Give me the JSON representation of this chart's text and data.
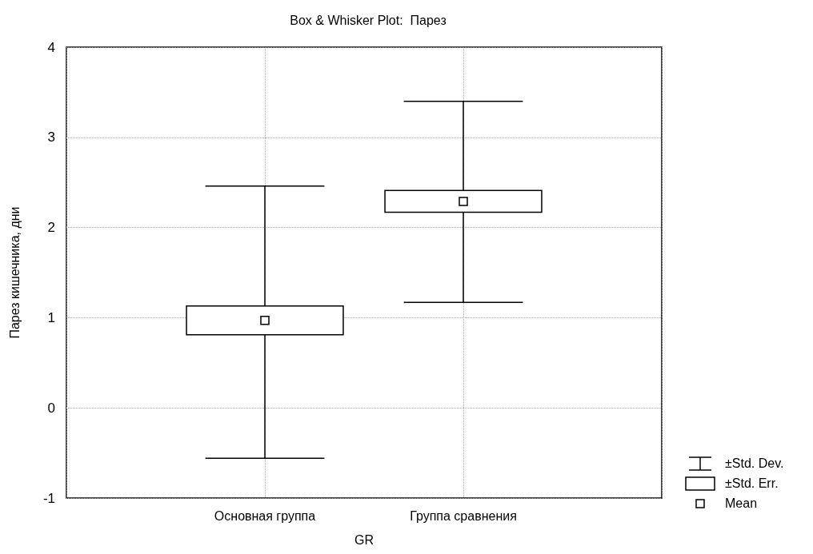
{
  "chart_data": {
    "type": "box",
    "title": "Box & Whisker Plot:  Парез",
    "xlabel": "GR",
    "ylabel": "Парез кишечника, дни",
    "categories": [
      "Основная группа",
      "Группа сравнения"
    ],
    "series": [
      {
        "color": "#000000",
        "boxes": [
          {
            "low": -0.56,
            "q1": 0.81,
            "median": null,
            "q3": 1.13,
            "high": 2.46,
            "mean": 0.97
          },
          {
            "low": 1.17,
            "q1": 2.17,
            "median": null,
            "q3": 2.41,
            "high": 3.4,
            "mean": 2.29
          }
        ]
      }
    ],
    "ylim": [
      -1,
      4
    ],
    "yticks": [
      -1,
      0,
      1,
      2,
      3,
      4
    ],
    "grid": true,
    "annotations": [
      "±Std. Dev.",
      "±Std. Err.",
      "Mean"
    ]
  }
}
